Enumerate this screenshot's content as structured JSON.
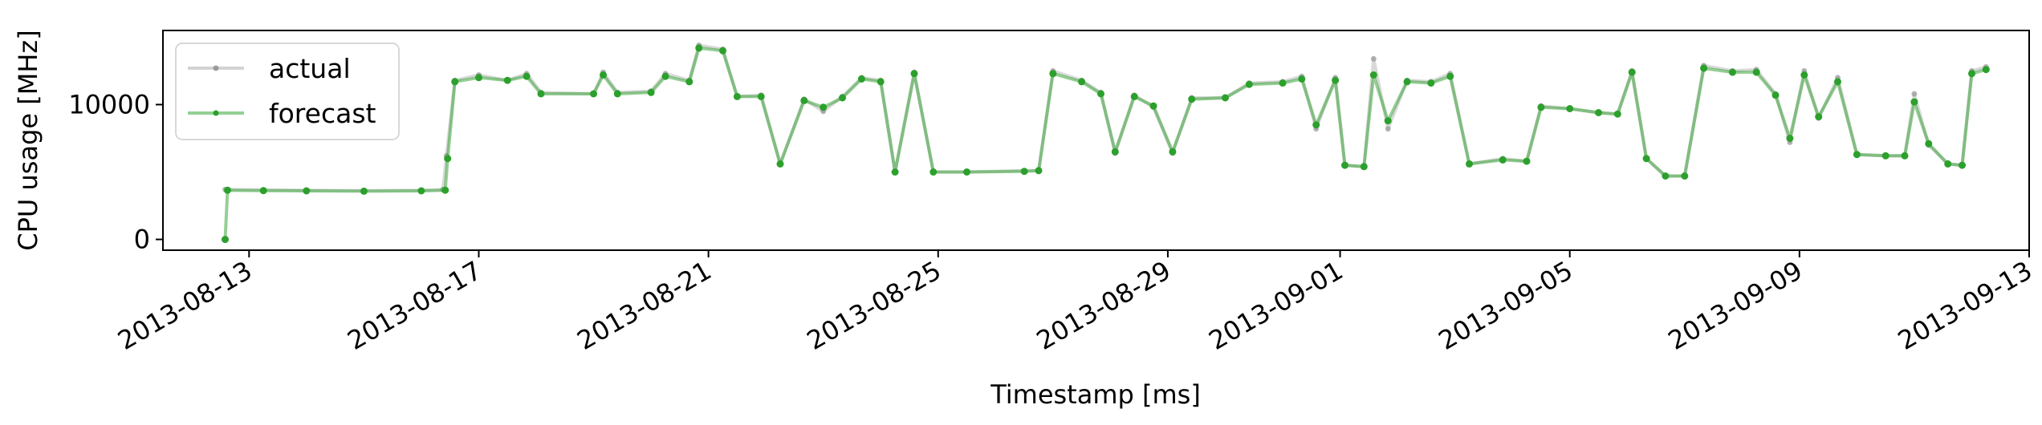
{
  "chart_data": {
    "type": "line",
    "title": "",
    "xlabel": "Timestamp [ms]",
    "ylabel": "CPU usage [MHz]",
    "xlim": [
      "2013-08-11T12:00",
      "2013-09-13T00:00"
    ],
    "ylim": [
      -800,
      15500
    ],
    "x_ticks": [
      "2013-08-13",
      "2013-08-17",
      "2013-08-21",
      "2013-08-25",
      "2013-08-29",
      "2013-09-01",
      "2013-09-05",
      "2013-09-09",
      "2013-09-13"
    ],
    "y_ticks": [
      0,
      10000
    ],
    "grid": false,
    "legend": {
      "position": "top-left"
    },
    "series": [
      {
        "name": "actual",
        "color": "#808080",
        "points": [
          [
            "2013-08-12T14:00",
            3700
          ],
          [
            "2013-08-13T06:00",
            3680
          ],
          [
            "2013-08-14T00:00",
            3650
          ],
          [
            "2013-08-15T00:00",
            3620
          ],
          [
            "2013-08-16T00:00",
            3650
          ],
          [
            "2013-08-16T09:00",
            3700
          ],
          [
            "2013-08-16T10:30",
            6200
          ],
          [
            "2013-08-16T14:00",
            11800
          ],
          [
            "2013-08-17T00:00",
            12200
          ],
          [
            "2013-08-17T12:00",
            11800
          ],
          [
            "2013-08-17T20:00",
            12300
          ],
          [
            "2013-08-18T02:00",
            10900
          ],
          [
            "2013-08-19T00:00",
            10800
          ],
          [
            "2013-08-19T04:00",
            12400
          ],
          [
            "2013-08-19T10:00",
            10900
          ],
          [
            "2013-08-20T00:00",
            11000
          ],
          [
            "2013-08-20T06:00",
            12300
          ],
          [
            "2013-08-20T16:00",
            11800
          ],
          [
            "2013-08-20T20:00",
            14400
          ],
          [
            "2013-08-21T06:00",
            14100
          ],
          [
            "2013-08-21T12:00",
            10600
          ],
          [
            "2013-08-21T22:00",
            10700
          ],
          [
            "2013-08-22T06:00",
            5600
          ],
          [
            "2013-08-22T16:00",
            10400
          ],
          [
            "2013-08-23T00:00",
            9500
          ],
          [
            "2013-08-23T08:00",
            10600
          ],
          [
            "2013-08-23T16:00",
            12000
          ],
          [
            "2013-08-24T00:00",
            11800
          ],
          [
            "2013-08-24T06:00",
            5000
          ],
          [
            "2013-08-24T14:00",
            12400
          ],
          [
            "2013-08-24T22:00",
            5000
          ],
          [
            "2013-08-25T12:00",
            5000
          ],
          [
            "2013-08-26T12:00",
            5100
          ],
          [
            "2013-08-26T18:00",
            5100
          ],
          [
            "2013-08-27T00:00",
            12500
          ],
          [
            "2013-08-27T12:00",
            11800
          ],
          [
            "2013-08-27T20:00",
            10900
          ],
          [
            "2013-08-28T02:00",
            6400
          ],
          [
            "2013-08-28T10:00",
            10700
          ],
          [
            "2013-08-28T18:00",
            9800
          ],
          [
            "2013-08-29T02:00",
            6400
          ],
          [
            "2013-08-29T10:00",
            10500
          ],
          [
            "2013-08-30T00:00",
            10500
          ],
          [
            "2013-08-30T10:00",
            11600
          ],
          [
            "2013-08-31T00:00",
            11700
          ],
          [
            "2013-08-31T08:00",
            12100
          ],
          [
            "2013-08-31T14:00",
            8200
          ],
          [
            "2013-08-31T22:00",
            12000
          ],
          [
            "2013-09-01T02:00",
            5500
          ],
          [
            "2013-09-01T10:00",
            5400
          ],
          [
            "2013-09-01T14:00",
            13400
          ],
          [
            "2013-09-01T20:00",
            8200
          ],
          [
            "2013-09-02T04:00",
            11800
          ],
          [
            "2013-09-02T14:00",
            11700
          ],
          [
            "2013-09-02T22:00",
            12300
          ],
          [
            "2013-09-03T06:00",
            5600
          ],
          [
            "2013-09-03T20:00",
            6000
          ],
          [
            "2013-09-04T06:00",
            5800
          ],
          [
            "2013-09-04T12:00",
            9900
          ],
          [
            "2013-09-05T00:00",
            9700
          ],
          [
            "2013-09-05T12:00",
            9400
          ],
          [
            "2013-09-05T20:00",
            9300
          ],
          [
            "2013-09-06T02:00",
            12500
          ],
          [
            "2013-09-06T08:00",
            6000
          ],
          [
            "2013-09-06T16:00",
            4700
          ],
          [
            "2013-09-07T00:00",
            4700
          ],
          [
            "2013-09-07T08:00",
            12900
          ],
          [
            "2013-09-07T20:00",
            12500
          ],
          [
            "2013-09-08T06:00",
            12600
          ],
          [
            "2013-09-08T14:00",
            10800
          ],
          [
            "2013-09-08T20:00",
            7200
          ],
          [
            "2013-09-09T02:00",
            12500
          ],
          [
            "2013-09-09T08:00",
            9000
          ],
          [
            "2013-09-09T16:00",
            12000
          ],
          [
            "2013-09-10T00:00",
            6300
          ],
          [
            "2013-09-10T12:00",
            6200
          ],
          [
            "2013-09-10T20:00",
            6200
          ],
          [
            "2013-09-11T00:00",
            10800
          ],
          [
            "2013-09-11T06:00",
            7000
          ],
          [
            "2013-09-11T14:00",
            5600
          ],
          [
            "2013-09-11T20:00",
            5500
          ],
          [
            "2013-09-12T00:00",
            12500
          ],
          [
            "2013-09-12T06:00",
            12800
          ]
        ]
      },
      {
        "name": "forecast",
        "color": "#2ca02c",
        "points": [
          [
            "2013-08-12T14:00",
            0
          ],
          [
            "2013-08-12T15:00",
            3650
          ],
          [
            "2013-08-13T06:00",
            3620
          ],
          [
            "2013-08-14T00:00",
            3600
          ],
          [
            "2013-08-15T00:00",
            3580
          ],
          [
            "2013-08-16T00:00",
            3600
          ],
          [
            "2013-08-16T10:00",
            3650
          ],
          [
            "2013-08-16T11:00",
            6000
          ],
          [
            "2013-08-16T14:00",
            11700
          ],
          [
            "2013-08-17T00:00",
            12000
          ],
          [
            "2013-08-17T12:00",
            11800
          ],
          [
            "2013-08-17T20:00",
            12100
          ],
          [
            "2013-08-18T02:00",
            10800
          ],
          [
            "2013-08-19T00:00",
            10800
          ],
          [
            "2013-08-19T04:00",
            12200
          ],
          [
            "2013-08-19T10:00",
            10800
          ],
          [
            "2013-08-20T00:00",
            10900
          ],
          [
            "2013-08-20T06:00",
            12100
          ],
          [
            "2013-08-20T16:00",
            11700
          ],
          [
            "2013-08-20T20:00",
            14200
          ],
          [
            "2013-08-21T06:00",
            14000
          ],
          [
            "2013-08-21T12:00",
            10600
          ],
          [
            "2013-08-21T22:00",
            10600
          ],
          [
            "2013-08-22T06:00",
            5600
          ],
          [
            "2013-08-22T16:00",
            10300
          ],
          [
            "2013-08-23T00:00",
            9800
          ],
          [
            "2013-08-23T08:00",
            10500
          ],
          [
            "2013-08-23T16:00",
            11900
          ],
          [
            "2013-08-24T00:00",
            11700
          ],
          [
            "2013-08-24T06:00",
            5000
          ],
          [
            "2013-08-24T14:00",
            12300
          ],
          [
            "2013-08-24T22:00",
            5000
          ],
          [
            "2013-08-25T12:00",
            5000
          ],
          [
            "2013-08-26T12:00",
            5050
          ],
          [
            "2013-08-26T18:00",
            5100
          ],
          [
            "2013-08-27T00:00",
            12300
          ],
          [
            "2013-08-27T12:00",
            11700
          ],
          [
            "2013-08-27T20:00",
            10800
          ],
          [
            "2013-08-28T02:00",
            6500
          ],
          [
            "2013-08-28T10:00",
            10600
          ],
          [
            "2013-08-28T18:00",
            9900
          ],
          [
            "2013-08-29T02:00",
            6500
          ],
          [
            "2013-08-29T10:00",
            10400
          ],
          [
            "2013-08-30T00:00",
            10500
          ],
          [
            "2013-08-30T10:00",
            11500
          ],
          [
            "2013-08-31T00:00",
            11600
          ],
          [
            "2013-08-31T08:00",
            11900
          ],
          [
            "2013-08-31T14:00",
            8500
          ],
          [
            "2013-08-31T22:00",
            11800
          ],
          [
            "2013-09-01T02:00",
            5500
          ],
          [
            "2013-09-01T10:00",
            5400
          ],
          [
            "2013-09-01T14:00",
            12200
          ],
          [
            "2013-09-01T20:00",
            8800
          ],
          [
            "2013-09-02T04:00",
            11700
          ],
          [
            "2013-09-02T14:00",
            11600
          ],
          [
            "2013-09-02T22:00",
            12100
          ],
          [
            "2013-09-03T06:00",
            5600
          ],
          [
            "2013-09-03T20:00",
            5900
          ],
          [
            "2013-09-04T06:00",
            5800
          ],
          [
            "2013-09-04T12:00",
            9800
          ],
          [
            "2013-09-05T00:00",
            9700
          ],
          [
            "2013-09-05T12:00",
            9400
          ],
          [
            "2013-09-05T20:00",
            9300
          ],
          [
            "2013-09-06T02:00",
            12400
          ],
          [
            "2013-09-06T08:00",
            6000
          ],
          [
            "2013-09-06T16:00",
            4700
          ],
          [
            "2013-09-07T00:00",
            4700
          ],
          [
            "2013-09-07T08:00",
            12700
          ],
          [
            "2013-09-07T20:00",
            12400
          ],
          [
            "2013-09-08T06:00",
            12400
          ],
          [
            "2013-09-08T14:00",
            10700
          ],
          [
            "2013-09-08T20:00",
            7500
          ],
          [
            "2013-09-09T02:00",
            12200
          ],
          [
            "2013-09-09T08:00",
            9100
          ],
          [
            "2013-09-09T16:00",
            11700
          ],
          [
            "2013-09-10T00:00",
            6300
          ],
          [
            "2013-09-10T12:00",
            6200
          ],
          [
            "2013-09-10T20:00",
            6200
          ],
          [
            "2013-09-11T00:00",
            10200
          ],
          [
            "2013-09-11T06:00",
            7100
          ],
          [
            "2013-09-11T14:00",
            5600
          ],
          [
            "2013-09-11T20:00",
            5500
          ],
          [
            "2013-09-12T00:00",
            12300
          ],
          [
            "2013-09-12T06:00",
            12600
          ]
        ]
      }
    ]
  }
}
